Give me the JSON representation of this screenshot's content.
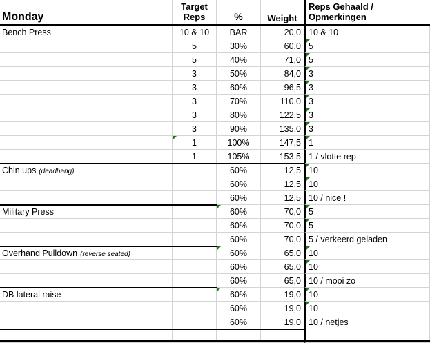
{
  "header": {
    "title": "Monday",
    "target_reps": "Target\nReps",
    "percent": "%",
    "weight": "Weight",
    "reps_achieved": "Reps Gehaald /\nOpmerkingen"
  },
  "marker_color": "#1e7b1e",
  "rows": [
    {
      "exercise": "Bench Press",
      "note": "",
      "reps": "10 & 10",
      "pct": "BAR",
      "weight": "20,0",
      "result": "10 & 10",
      "flags": []
    },
    {
      "exercise": "",
      "note": "",
      "reps": "5",
      "pct": "30%",
      "weight": "60,0",
      "result": "5",
      "flags": [
        "e"
      ]
    },
    {
      "exercise": "",
      "note": "",
      "reps": "5",
      "pct": "40%",
      "weight": "71,0",
      "result": "5",
      "flags": [
        "e"
      ]
    },
    {
      "exercise": "",
      "note": "",
      "reps": "3",
      "pct": "50%",
      "weight": "84,0",
      "result": "3",
      "flags": [
        "e"
      ]
    },
    {
      "exercise": "",
      "note": "",
      "reps": "3",
      "pct": "60%",
      "weight": "96,5",
      "result": "3",
      "flags": [
        "e"
      ]
    },
    {
      "exercise": "",
      "note": "",
      "reps": "3",
      "pct": "70%",
      "weight": "110,0",
      "result": "3",
      "flags": [
        "e"
      ]
    },
    {
      "exercise": "",
      "note": "",
      "reps": "3",
      "pct": "80%",
      "weight": "122,5",
      "result": "3",
      "flags": [
        "e"
      ]
    },
    {
      "exercise": "",
      "note": "",
      "reps": "3",
      "pct": "90%",
      "weight": "135,0",
      "result": "3",
      "flags": [
        "e"
      ]
    },
    {
      "exercise": "",
      "note": "",
      "reps": "1",
      "pct": "100%",
      "weight": "147,5",
      "result": "1",
      "flags": [
        "b",
        "e"
      ]
    },
    {
      "exercise": "",
      "note": "",
      "reps": "1",
      "pct": "105%",
      "weight": "153,5",
      "result": "1 / vlotte rep",
      "flags": []
    },
    {
      "exercise": "Chin ups",
      "note": "(deadhang)",
      "reps": "",
      "pct": "60%",
      "weight": "12,5",
      "result": "10",
      "flags": [
        "e"
      ],
      "line": "full"
    },
    {
      "exercise": "",
      "note": "",
      "reps": "",
      "pct": "60%",
      "weight": "12,5",
      "result": "10",
      "flags": [
        "e"
      ]
    },
    {
      "exercise": "",
      "note": "",
      "reps": "",
      "pct": "60%",
      "weight": "12,5",
      "result": "10 / nice !",
      "flags": []
    },
    {
      "exercise": "Military Press",
      "note": "",
      "reps": "",
      "pct": "60%",
      "weight": "70,0",
      "result": "5",
      "flags": [
        "c",
        "e"
      ],
      "line": "ab"
    },
    {
      "exercise": "",
      "note": "",
      "reps": "",
      "pct": "60%",
      "weight": "70,0",
      "result": "5",
      "flags": [
        "e"
      ]
    },
    {
      "exercise": "",
      "note": "",
      "reps": "",
      "pct": "60%",
      "weight": "70,0",
      "result": "5 / verkeerd geladen",
      "flags": []
    },
    {
      "exercise": "Overhand Pulldown",
      "note": "(reverse seated)",
      "reps": "",
      "pct": "60%",
      "weight": "65,0",
      "result": "10",
      "flags": [
        "c",
        "e"
      ],
      "line": "ab"
    },
    {
      "exercise": "",
      "note": "",
      "reps": "",
      "pct": "60%",
      "weight": "65,0",
      "result": "10",
      "flags": [
        "e"
      ]
    },
    {
      "exercise": "",
      "note": "",
      "reps": "",
      "pct": "60%",
      "weight": "65,0",
      "result": "10 / mooi zo",
      "flags": []
    },
    {
      "exercise": "DB lateral raise",
      "note": "",
      "reps": "",
      "pct": "60%",
      "weight": "19,0",
      "result": "10",
      "flags": [
        "c",
        "e"
      ],
      "line": "ab"
    },
    {
      "exercise": "",
      "note": "",
      "reps": "",
      "pct": "60%",
      "weight": "19,0",
      "result": "10",
      "flags": [
        "e"
      ]
    },
    {
      "exercise": "",
      "note": "",
      "reps": "",
      "pct": "60%",
      "weight": "19,0",
      "result": "10 / netjes",
      "flags": []
    },
    {
      "exercise": "",
      "note": "",
      "reps": "",
      "pct": "",
      "weight": "",
      "result": "",
      "flags": [],
      "line": "full"
    }
  ]
}
